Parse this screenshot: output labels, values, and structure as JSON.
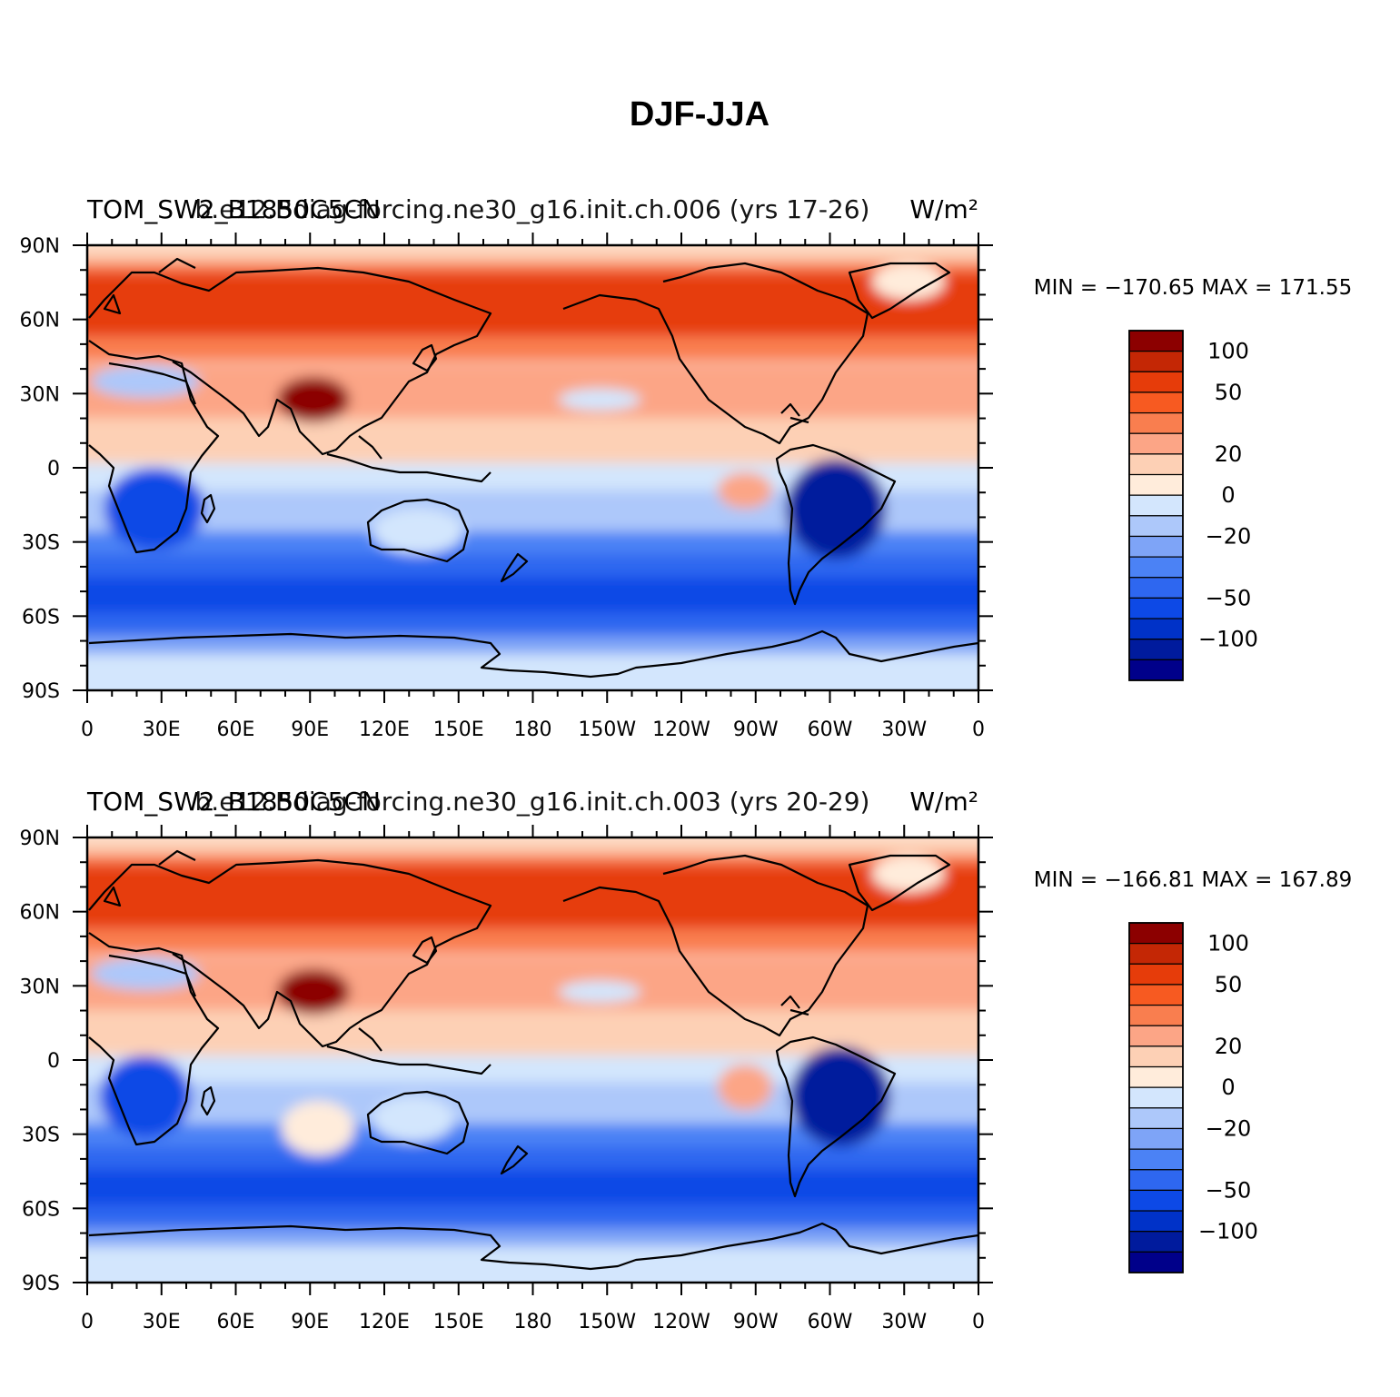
{
  "chart_data": {
    "type": "heatmap",
    "title": "DJF-JJA",
    "lon_ticks": [
      "0",
      "30E",
      "60E",
      "90E",
      "120E",
      "150E",
      "180",
      "150W",
      "120W",
      "90W",
      "60W",
      "30W",
      "0"
    ],
    "lat_ticks": [
      "90N",
      "60N",
      "30N",
      "0",
      "30S",
      "60S",
      "90S"
    ],
    "colorbar": {
      "levels": [
        -150,
        -125,
        -100,
        -75,
        -50,
        -40,
        -30,
        -20,
        -10,
        0,
        10,
        20,
        30,
        40,
        50,
        75,
        100,
        125,
        150
      ],
      "labels": [
        "100",
        "50",
        "20",
        "0",
        "−20",
        "−50",
        "−100"
      ],
      "label_values": [
        100,
        50,
        20,
        0,
        -20,
        -50,
        -100
      ],
      "colors": [
        "#00008a",
        "#001b9d",
        "#0032c8",
        "#0d49e6",
        "#2e67f0",
        "#4b82f5",
        "#7ea4f7",
        "#adc8fa",
        "#d3e6fd",
        "#ffecdb",
        "#fdd0b5",
        "#fca586",
        "#f97e4f",
        "#f75a21",
        "#e63c0a",
        "#c42705",
        "#8c0000"
      ]
    },
    "panels": [
      {
        "left_title": "TOM_SW2_B1850C5CN",
        "center_title": "b.e12.Bdiag-forcing.ne30_g16.init.ch.006 (yrs 17-26)",
        "units": "W/m²",
        "min_max": "MIN = −170.65  MAX = 171.55",
        "min": -170.65,
        "max": 171.55
      },
      {
        "left_title": "TOM_SW2_B1850C5CN",
        "center_title": "b.e12.Bdiag-forcing.ne30_g16.init.ch.003 (yrs 20-29)",
        "units": "W/m²",
        "min_max": "MIN = −166.81  MAX = 167.89",
        "min": -166.81,
        "max": 167.89
      }
    ]
  }
}
